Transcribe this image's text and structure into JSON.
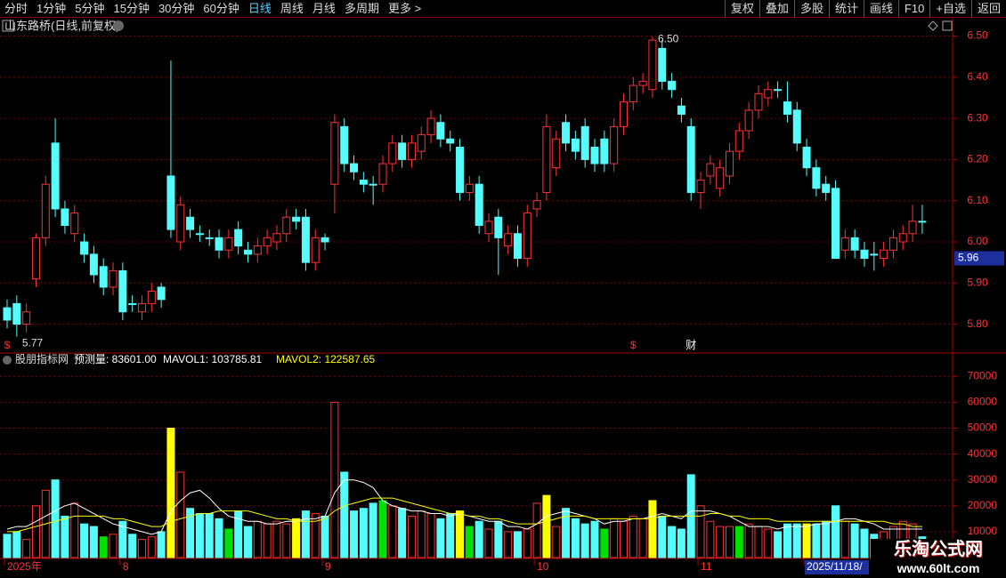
{
  "toolbar": {
    "left": [
      "分时",
      "1分钟",
      "5分钟",
      "15分钟",
      "30分钟",
      "60分钟",
      "日线",
      "周线",
      "月线",
      "多周期",
      "更多 >"
    ],
    "active_index": 6,
    "right": [
      "复权",
      "叠加",
      "多股",
      "统计",
      "画线",
      "F10",
      "+自选",
      "返回"
    ]
  },
  "watermark": {
    "name": "乐淘公式网",
    "url": "www.60lt.com"
  },
  "chart_data": [
    {
      "type": "candlestick",
      "title": "山东路桥(日线,前复权)",
      "up_color": "#ff3232",
      "down_color": "#54fcfc",
      "ylim": [
        5.73,
        6.54
      ],
      "yticks": [
        {
          "value": 5.8,
          "label": "5.80"
        },
        {
          "value": 5.9,
          "label": "5.90"
        },
        {
          "value": 6.0,
          "label": "6.00"
        },
        {
          "value": 6.1,
          "label": "6.10"
        },
        {
          "value": 6.2,
          "label": "6.20"
        },
        {
          "value": 6.3,
          "label": "6.30"
        },
        {
          "value": 6.4,
          "label": "6.40"
        },
        {
          "value": 6.5,
          "label": "6.50"
        }
      ],
      "grid": true,
      "max_label": {
        "value": 6.5,
        "label": "6.50"
      },
      "min_label": {
        "value": 5.77,
        "label": "5.77"
      },
      "price_tag": {
        "value": 5.96,
        "label": "5.96"
      },
      "events": [
        {
          "index": 0,
          "label": "$",
          "color": "#ff3232"
        },
        {
          "index": 65,
          "label": "$",
          "color": "#ff3232"
        },
        {
          "index": 71,
          "label": "财",
          "color": "#ffffff"
        }
      ],
      "open": [
        5.84,
        5.85,
        5.8,
        5.91,
        6.01,
        6.24,
        6.08,
        6.02,
        6.0,
        5.97,
        5.94,
        5.89,
        5.93,
        5.85,
        5.83,
        5.85,
        5.89,
        6.16,
        6.0,
        6.06,
        6.02,
        6.01,
        6.01,
        5.98,
        6.03,
        5.98,
        5.97,
        5.99,
        6.0,
        6.02,
        6.06,
        6.06,
        5.95,
        6.01,
        6.14,
        6.28,
        6.19,
        6.15,
        6.14,
        6.14,
        6.19,
        6.24,
        6.2,
        6.22,
        6.26,
        6.29,
        6.25,
        6.23,
        6.12,
        6.14,
        6.02,
        6.06,
        5.99,
        6.02,
        5.96,
        6.08,
        6.12,
        6.18,
        6.29,
        6.25,
        6.28,
        6.23,
        6.25,
        6.19,
        6.28,
        6.34,
        6.38,
        6.37,
        6.47,
        6.39,
        6.33,
        6.28,
        6.12,
        6.16,
        6.13,
        6.16,
        6.22,
        6.27,
        6.32,
        6.35,
        6.37,
        6.34,
        6.32,
        6.23,
        6.18,
        6.14,
        6.13,
        5.98,
        6.01,
        5.98,
        5.97,
        5.96,
        5.98,
        6.0,
        6.02,
        6.05
      ],
      "high": [
        5.86,
        5.87,
        5.85,
        6.02,
        6.16,
        6.3,
        6.1,
        6.09,
        6.02,
        5.99,
        5.96,
        5.95,
        5.95,
        5.87,
        5.87,
        5.9,
        5.9,
        6.44,
        6.11,
        6.08,
        6.04,
        6.03,
        6.03,
        6.03,
        6.05,
        6.0,
        6.01,
        6.03,
        6.04,
        6.08,
        6.08,
        6.08,
        6.03,
        6.02,
        6.31,
        6.3,
        6.21,
        6.17,
        6.16,
        6.21,
        6.26,
        6.26,
        6.26,
        6.28,
        6.32,
        6.31,
        6.27,
        6.25,
        6.16,
        6.16,
        6.07,
        6.08,
        6.04,
        6.04,
        6.09,
        6.12,
        6.31,
        6.27,
        6.31,
        6.27,
        6.3,
        6.25,
        6.27,
        6.3,
        6.36,
        6.4,
        6.41,
        6.5,
        6.49,
        6.41,
        6.35,
        6.3,
        6.17,
        6.21,
        6.2,
        6.24,
        6.29,
        6.34,
        6.38,
        6.39,
        6.39,
        6.39,
        6.34,
        6.25,
        6.2,
        6.16,
        6.15,
        6.03,
        6.03,
        6.0,
        6.0,
        6.0,
        6.03,
        6.04,
        6.09,
        6.09
      ],
      "low": [
        5.79,
        5.77,
        5.78,
        5.89,
        5.99,
        6.06,
        6.02,
        6.0,
        5.95,
        5.9,
        5.87,
        5.87,
        5.81,
        5.83,
        5.81,
        5.83,
        5.84,
        6.01,
        5.98,
        6.01,
        6.0,
        5.99,
        5.96,
        5.96,
        5.97,
        5.95,
        5.95,
        5.97,
        5.98,
        6.0,
        6.03,
        5.93,
        5.93,
        5.98,
        6.07,
        6.17,
        6.15,
        6.12,
        6.09,
        6.12,
        6.17,
        6.18,
        6.18,
        6.2,
        6.24,
        6.23,
        6.22,
        6.1,
        6.1,
        6.02,
        6.0,
        5.92,
        5.97,
        5.94,
        5.94,
        6.06,
        6.1,
        6.16,
        6.22,
        6.2,
        6.18,
        6.17,
        6.17,
        6.17,
        6.26,
        6.32,
        6.36,
        6.35,
        6.37,
        6.35,
        6.29,
        6.1,
        6.08,
        6.14,
        6.11,
        6.14,
        6.2,
        6.25,
        6.3,
        6.33,
        6.35,
        6.29,
        6.22,
        6.16,
        6.11,
        6.1,
        5.96,
        5.96,
        5.96,
        5.94,
        5.93,
        5.94,
        5.96,
        5.98,
        6.0,
        6.02
      ],
      "close": [
        5.81,
        5.8,
        5.83,
        6.01,
        6.14,
        6.08,
        6.04,
        6.07,
        5.97,
        5.92,
        5.89,
        5.93,
        5.83,
        5.85,
        5.85,
        5.88,
        5.86,
        6.03,
        6.09,
        6.03,
        6.02,
        6.01,
        5.98,
        6.01,
        5.99,
        5.97,
        5.99,
        6.01,
        6.02,
        6.06,
        6.05,
        5.95,
        6.01,
        6.0,
        6.29,
        6.19,
        6.17,
        6.14,
        6.14,
        6.19,
        6.24,
        6.2,
        6.24,
        6.26,
        6.3,
        6.25,
        6.24,
        6.12,
        6.14,
        6.04,
        6.05,
        6.01,
        6.02,
        5.96,
        6.07,
        6.1,
        6.28,
        6.25,
        6.24,
        6.22,
        6.2,
        6.19,
        6.19,
        6.28,
        6.34,
        6.38,
        6.39,
        6.49,
        6.39,
        6.37,
        6.31,
        6.12,
        6.15,
        6.19,
        6.18,
        6.22,
        6.27,
        6.32,
        6.36,
        6.37,
        6.37,
        6.31,
        6.24,
        6.18,
        6.13,
        6.12,
        5.96,
        6.01,
        5.98,
        5.96,
        5.97,
        5.98,
        6.01,
        6.02,
        6.05,
        6.05
      ]
    },
    {
      "type": "bar",
      "title": "股朋指标网",
      "forecast_label": "预测量: 83601.00",
      "ylim": [
        0,
        78000
      ],
      "yticks": [
        10000,
        20000,
        30000,
        40000,
        50000,
        60000,
        70000
      ],
      "grid": true,
      "categories": [
        "2025年",
        null,
        null,
        null,
        null,
        null,
        null,
        null,
        null,
        null,
        null,
        null,
        "8",
        null,
        null,
        null,
        null,
        null,
        null,
        null,
        null,
        null,
        null,
        null,
        null,
        null,
        null,
        null,
        null,
        null,
        null,
        null,
        null,
        "9",
        null,
        null,
        null,
        null,
        null,
        null,
        null,
        null,
        null,
        null,
        null,
        null,
        null,
        null,
        null,
        null,
        null,
        null,
        null,
        null,
        null,
        "10",
        null,
        null,
        null,
        null,
        null,
        null,
        null,
        null,
        null,
        null,
        null,
        null,
        null,
        null,
        null,
        null,
        "11",
        null,
        null,
        null,
        null,
        null,
        null,
        null,
        null,
        null,
        null,
        "2025/11/18/",
        null,
        null,
        null,
        null,
        null,
        null,
        null,
        null,
        null,
        null,
        null,
        null
      ],
      "selected_index": 83,
      "values": [
        9000,
        10000,
        7000,
        20000,
        26000,
        30000,
        16000,
        21000,
        13000,
        12000,
        8000,
        9000,
        14000,
        9000,
        7000,
        8000,
        10000,
        50000,
        33000,
        19000,
        17000,
        17000,
        15000,
        11000,
        18000,
        12000,
        14000,
        13000,
        14000,
        13000,
        15000,
        18000,
        17000,
        16000,
        60000,
        33000,
        18000,
        19000,
        21000,
        22000,
        20000,
        19000,
        16000,
        18000,
        17000,
        15000,
        17000,
        18000,
        12000,
        14000,
        11000,
        14000,
        10000,
        10000,
        11000,
        21000,
        24000,
        12000,
        19000,
        15000,
        13000,
        14000,
        11000,
        15000,
        14000,
        16000,
        15000,
        22000,
        16000,
        12000,
        11000,
        32000,
        20000,
        14000,
        12000,
        12000,
        12000,
        13000,
        12000,
        11000,
        10000,
        13000,
        13000,
        13000,
        13000,
        14000,
        20000,
        14000,
        13000,
        11000,
        9000,
        10000,
        12000,
        14000,
        13000,
        8000
      ],
      "hollow_color": "#ff3232",
      "colors": [
        "#54fcfc",
        "#54fcfc",
        "#ff3232",
        "#ff3232",
        "#ff3232",
        "#54fcfc",
        "#54fcfc",
        "#ff3232",
        "#54fcfc",
        "#54fcfc",
        "#00e000",
        "#ff3232",
        "#54fcfc",
        "#54fcfc",
        "#ff3232",
        "#ff3232",
        "#54fcfc",
        "#ffff00",
        "#ff3232",
        "#54fcfc",
        "#54fcfc",
        "#54fcfc",
        "#54fcfc",
        "#00e000",
        "#54fcfc",
        "#54fcfc",
        "#ff3232",
        "#ff3232",
        "#ff3232",
        "#ff3232",
        "#ffff00",
        "#54fcfc",
        "#ff3232",
        "#54fcfc",
        "#ff3232",
        "#54fcfc",
        "#54fcfc",
        "#54fcfc",
        "#54fcfc",
        "#00e000",
        "#ff3232",
        "#54fcfc",
        "#ff3232",
        "#ff3232",
        "#ff3232",
        "#54fcfc",
        "#54fcfc",
        "#ffff00",
        "#00e000",
        "#54fcfc",
        "#ff3232",
        "#54fcfc",
        "#ff3232",
        "#54fcfc",
        "#ff3232",
        "#ff3232",
        "#ffff00",
        "#ff3232",
        "#54fcfc",
        "#54fcfc",
        "#54fcfc",
        "#54fcfc",
        "#00e000",
        "#ff3232",
        "#ff3232",
        "#ff3232",
        "#ff3232",
        "#ffff00",
        "#54fcfc",
        "#54fcfc",
        "#54fcfc",
        "#54fcfc",
        "#ff3232",
        "#ff3232",
        "#ff3232",
        "#ff3232",
        "#00e000",
        "#ff3232",
        "#ff3232",
        "#ff3232",
        "#54fcfc",
        "#54fcfc",
        "#54fcfc",
        "#ffff00",
        "#54fcfc",
        "#54fcfc",
        "#54fcfc",
        "#ff3232",
        "#54fcfc",
        "#54fcfc",
        "#54fcfc",
        "#ff3232",
        "#ff3232",
        "#ff3232",
        "#ff3232",
        "#54fcfc"
      ],
      "series": [
        {
          "label": "MAVOL1: 103785.81",
          "color": "#ffffff",
          "values": [
            11000,
            12000,
            12000,
            14000,
            16000,
            18000,
            20000,
            21000,
            19000,
            17000,
            15000,
            13000,
            12000,
            11000,
            10000,
            9000,
            10000,
            18000,
            22000,
            25000,
            26000,
            23000,
            19000,
            16000,
            15000,
            14000,
            14000,
            13000,
            13000,
            14000,
            14000,
            15000,
            15000,
            16000,
            25000,
            30000,
            30000,
            29000,
            27000,
            22000,
            20000,
            19000,
            18000,
            18000,
            17000,
            17000,
            16000,
            17000,
            16000,
            15000,
            14000,
            14000,
            12000,
            12000,
            11000,
            13000,
            16000,
            17000,
            18000,
            17000,
            16000,
            15000,
            13000,
            14000,
            14000,
            15000,
            15000,
            16000,
            17000,
            16000,
            15000,
            18000,
            18000,
            18000,
            17000,
            16000,
            14000,
            12000,
            12000,
            12000,
            11000,
            12000,
            12000,
            12000,
            13000,
            13000,
            14000,
            15000,
            15000,
            14000,
            13000,
            11000,
            11000,
            11000,
            11000,
            11000
          ]
        },
        {
          "label": "MAVOL2: 122587.65",
          "color": "#ffff00",
          "values": [
            10000,
            10000,
            11000,
            12000,
            13000,
            14000,
            15000,
            16000,
            16000,
            16000,
            16000,
            15000,
            15000,
            14000,
            13000,
            12000,
            12000,
            14000,
            15000,
            16000,
            17000,
            17000,
            18000,
            18000,
            18000,
            18000,
            17000,
            16000,
            15000,
            15000,
            14000,
            14000,
            14000,
            15000,
            18000,
            20000,
            21000,
            22000,
            23000,
            23000,
            23000,
            22000,
            21000,
            20000,
            19000,
            18000,
            17000,
            17000,
            16000,
            16000,
            15000,
            15000,
            14000,
            13000,
            13000,
            13000,
            14000,
            15000,
            16000,
            16000,
            16000,
            15000,
            15000,
            15000,
            15000,
            15000,
            15000,
            15000,
            16000,
            16000,
            16000,
            16000,
            16000,
            17000,
            17000,
            16000,
            16000,
            15000,
            15000,
            15000,
            14000,
            14000,
            14000,
            14000,
            14000,
            14000,
            14000,
            14000,
            14000,
            14000,
            14000,
            14000,
            13000,
            13000,
            12000,
            12000
          ]
        }
      ]
    }
  ]
}
